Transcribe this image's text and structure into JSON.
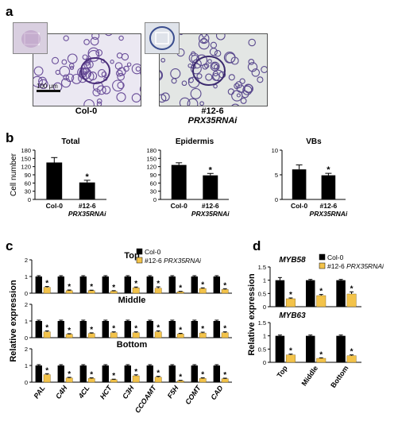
{
  "panels": {
    "a": {
      "label": "a",
      "scale_bar": "100 μm",
      "images": [
        {
          "caption_line1": "Col-0",
          "caption_line2": ""
        },
        {
          "caption_line1": "#12-6",
          "caption_line2": "PRX35RNAi"
        }
      ]
    },
    "b": {
      "label": "b"
    },
    "c": {
      "label": "c"
    },
    "d": {
      "label": "d"
    }
  },
  "colors": {
    "col0": "#000000",
    "rnai": "#f3c34a",
    "photo_purple": "#6b4f9a",
    "photo_bg": "#e9e6f2"
  },
  "chart_data": [
    {
      "id": "b-total",
      "type": "bar",
      "title": "Total",
      "ylabel": "Cell number",
      "categories": [
        "Col-0",
        "#12-6 PRX35RNAi"
      ],
      "category_lines": [
        [
          "Col-0"
        ],
        [
          "#12-6",
          "PRX35RNAi"
        ]
      ],
      "values": [
        135,
        62
      ],
      "errors": [
        18,
        8
      ],
      "significant": [
        false,
        true
      ],
      "ylim": [
        0,
        180
      ],
      "yticks": [
        0,
        30,
        60,
        90,
        120,
        150,
        180
      ]
    },
    {
      "id": "b-epidermis",
      "type": "bar",
      "title": "Epidermis",
      "ylabel": "",
      "categories": [
        "Col-0",
        "#12-6 PRX35RNAi"
      ],
      "category_lines": [
        [
          "Col-0"
        ],
        [
          "#12-6",
          "PRX35RNAi"
        ]
      ],
      "values": [
        126,
        88
      ],
      "errors": [
        8,
        7
      ],
      "significant": [
        false,
        true
      ],
      "ylim": [
        0,
        180
      ],
      "yticks": [
        0,
        30,
        60,
        90,
        120,
        150,
        180
      ]
    },
    {
      "id": "b-vbs",
      "type": "bar",
      "title": "VBs",
      "ylabel": "",
      "categories": [
        "Col-0",
        "#12-6 PRX35RNAi"
      ],
      "category_lines": [
        [
          "Col-0"
        ],
        [
          "#12-6",
          "PRX35RNAi"
        ]
      ],
      "values": [
        6.1,
        4.9
      ],
      "errors": [
        0.9,
        0.4
      ],
      "significant": [
        false,
        true
      ],
      "ylim": [
        0,
        10
      ],
      "yticks": [
        0,
        5,
        10
      ]
    },
    {
      "id": "c",
      "type": "bar",
      "ylabel": "Relative expression",
      "categories": [
        "PAL",
        "C4H",
        "4CL",
        "HCT",
        "C3H",
        "CCOAMT",
        "F5H",
        "COMT",
        "CAD"
      ],
      "legend": [
        {
          "name": "Col-0",
          "color": "#000000"
        },
        {
          "name": "#12-6 PRX35RNAi",
          "name_plain": "#12-6 ",
          "name_italic": "PRX35RNAi",
          "color": "#f3c34a"
        }
      ],
      "legend_position": "top-right",
      "subplots": [
        {
          "title": "Top",
          "ylim": [
            0,
            2
          ],
          "yticks": [
            0,
            1,
            2
          ],
          "col0": [
            1,
            1,
            1,
            1,
            1,
            1,
            1,
            1,
            1
          ],
          "col0_err": [
            0.05,
            0.05,
            0.05,
            0.05,
            0.05,
            0.05,
            0.05,
            0.05,
            0.05
          ],
          "rnai": [
            0.35,
            0.15,
            0.15,
            0.12,
            0.32,
            0.3,
            0.08,
            0.28,
            0.22
          ],
          "rnai_err": [
            0.05,
            0.04,
            0.03,
            0.03,
            0.05,
            0.08,
            0.03,
            0.04,
            0.05
          ],
          "sig": [
            true,
            true,
            true,
            true,
            true,
            true,
            true,
            true,
            true
          ]
        },
        {
          "title": "Middle",
          "ylim": [
            0,
            2
          ],
          "yticks": [
            0,
            1,
            2
          ],
          "col0": [
            1,
            1,
            1,
            1,
            1,
            1,
            1,
            1,
            1
          ],
          "col0_err": [
            0.05,
            0.05,
            0.05,
            0.05,
            0.05,
            0.05,
            0.05,
            0.05,
            0.05
          ],
          "rnai": [
            0.35,
            0.2,
            0.25,
            0.3,
            0.3,
            0.35,
            0.22,
            0.28,
            0.3
          ],
          "rnai_err": [
            0.06,
            0.04,
            0.04,
            0.05,
            0.05,
            0.06,
            0.04,
            0.05,
            0.05
          ],
          "sig": [
            true,
            true,
            true,
            true,
            true,
            true,
            true,
            true,
            true
          ]
        },
        {
          "title": "Bottom",
          "ylim": [
            0,
            2
          ],
          "yticks": [
            0,
            1,
            2
          ],
          "col0": [
            1,
            1,
            1,
            1,
            1,
            1,
            1,
            1,
            1
          ],
          "col0_err": [
            0.05,
            0.05,
            0.05,
            0.05,
            0.05,
            0.05,
            0.05,
            0.05,
            0.05
          ],
          "rnai": [
            0.45,
            0.25,
            0.22,
            0.15,
            0.38,
            0.3,
            0.08,
            0.22,
            0.2
          ],
          "rnai_err": [
            0.06,
            0.04,
            0.04,
            0.03,
            0.06,
            0.05,
            0.03,
            0.04,
            0.04
          ],
          "sig": [
            true,
            true,
            true,
            true,
            true,
            true,
            true,
            true,
            true
          ]
        }
      ]
    },
    {
      "id": "d",
      "type": "bar",
      "ylabel": "Relative expression",
      "categories": [
        "Top",
        "Middle",
        "Bottom"
      ],
      "legend": [
        {
          "name": "Col-0",
          "color": "#000000"
        },
        {
          "name": "#12-6 PRX35RNAi",
          "name_plain": "#12-6 ",
          "name_italic": "PRX35RNAi",
          "color": "#f3c34a"
        }
      ],
      "legend_position": "top-right",
      "subplots": [
        {
          "title": "MYB58",
          "ylim": [
            0,
            1.5
          ],
          "yticks": [
            0,
            0.5,
            1,
            1.5
          ],
          "col0": [
            1,
            1,
            1
          ],
          "col0_err": [
            0.1,
            0.03,
            0.03
          ],
          "rnai": [
            0.3,
            0.42,
            0.48
          ],
          "rnai_err": [
            0.03,
            0.04,
            0.08
          ],
          "sig": [
            true,
            true,
            true
          ]
        },
        {
          "title": "MYB63",
          "ylim": [
            0,
            1.5
          ],
          "yticks": [
            0,
            0.5,
            1,
            1.5
          ],
          "col0": [
            1,
            1,
            1
          ],
          "col0_err": [
            0.03,
            0.03,
            0.03
          ],
          "rnai": [
            0.28,
            0.15,
            0.25
          ],
          "rnai_err": [
            0.03,
            0.02,
            0.03
          ],
          "sig": [
            true,
            true,
            true
          ]
        }
      ]
    }
  ]
}
